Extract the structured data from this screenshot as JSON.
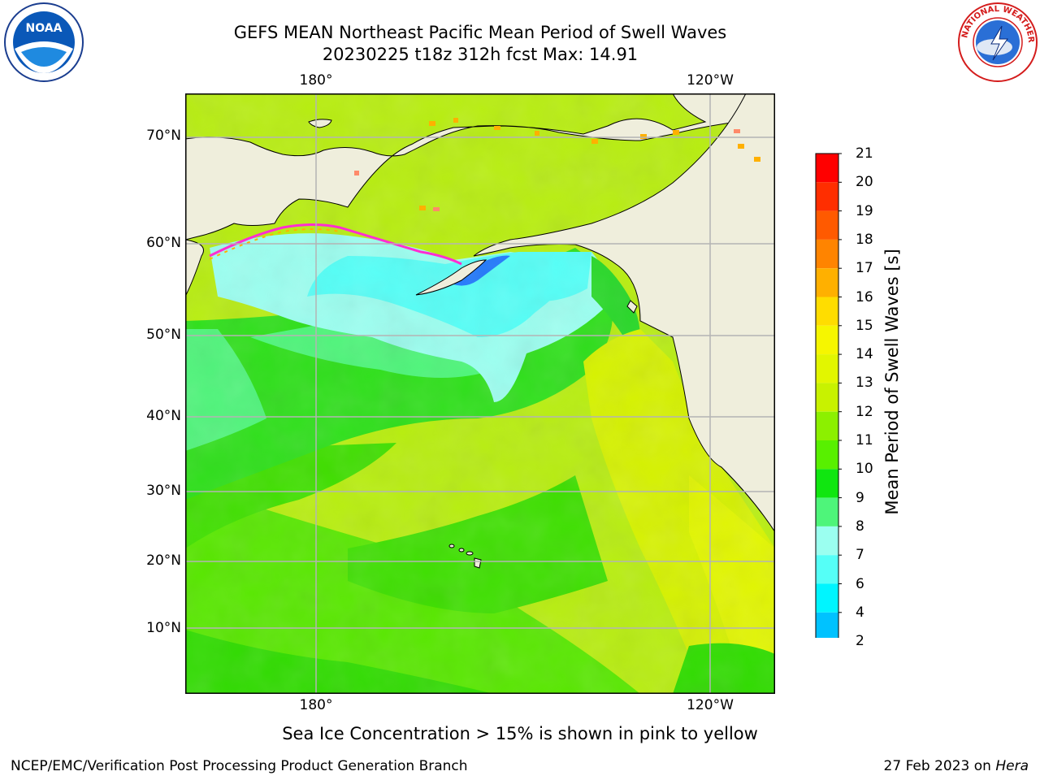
{
  "title": {
    "line1": "GEFS MEAN Northeast Pacific Mean Period of Swell Waves",
    "line2": "20230225 t18z 312h fcst   Max: 14.91"
  },
  "map": {
    "lon_labels_top": [
      "180°",
      "120°W"
    ],
    "lon_labels_bottom": [
      "180°",
      "120°W"
    ],
    "lat_labels": [
      "70°N",
      "60°N",
      "50°N",
      "40°N",
      "30°N",
      "20°N",
      "10°N"
    ],
    "land_color": "#efeedc",
    "grid_color": "#b4b4b4"
  },
  "colorbar": {
    "label": "Mean Period of Swell Waves [s]",
    "ticks": [
      "21",
      "20",
      "19",
      "18",
      "17",
      "16",
      "15",
      "14",
      "13",
      "12",
      "11",
      "10",
      "9",
      "8",
      "7",
      "6",
      "4",
      "2"
    ],
    "colors": [
      "#ff0000",
      "#ff2e00",
      "#ff5a00",
      "#ff8400",
      "#ffb000",
      "#ffdd00",
      "#f6f600",
      "#e2f600",
      "#c8f200",
      "#8cf000",
      "#58f000",
      "#10e610",
      "#4ef57a",
      "#9bfff0",
      "#55fff7",
      "#00f5ff",
      "#00c2ff",
      "#0072ff"
    ],
    "extend_color": "#1400ff"
  },
  "note": "Sea Ice Concentration > 15% is shown in pink to yellow",
  "footer": {
    "left": "NCEP/EMC/Verification Post Processing Product Generation Branch",
    "right_prefix": "27 Feb 2023 on ",
    "right_italic": "Hera"
  },
  "logos": {
    "noaa_text": "NOAA",
    "nws_text": "NATIONAL WEATHER SERVICE"
  }
}
